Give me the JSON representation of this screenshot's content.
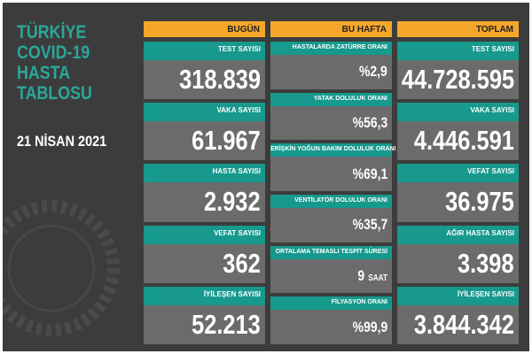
{
  "header": {
    "title": [
      "TÜRKİYE",
      "COVID-19",
      "HASTA",
      "TABLOSU"
    ],
    "date": "21 NİSAN 2021"
  },
  "columns": [
    {
      "heading": "BUGÜN",
      "cells": [
        {
          "label": "TEST SAYISI",
          "value": "318.839"
        },
        {
          "label": "VAKA SAYISI",
          "value": "61.967"
        },
        {
          "label": "HASTA SAYISI",
          "value": "2.932"
        },
        {
          "label": "VEFAT SAYISI",
          "value": "362"
        },
        {
          "label": "İYİLEŞEN SAYISI",
          "value": "52.213"
        }
      ]
    },
    {
      "heading": "BU HAFTA",
      "cells": [
        {
          "label": "HASTALARDA ZATÜRRE ORANI",
          "value": "%2,9"
        },
        {
          "label": "YATAK DOLULUK ORANI",
          "value": "%56,3"
        },
        {
          "label": "ERİŞKİN YOĞUN BAKIM DOLULUK ORANI",
          "value": "%69,1"
        },
        {
          "label": "VENTİLATÖR DOLULUK ORANI",
          "value": "%35,7"
        },
        {
          "label": "ORTALAMA TEMASLI TESPİT SÜRESİ",
          "value": "9",
          "unit": "SAAT"
        },
        {
          "label": "FİLYASYON ORANI",
          "value": "%99,9"
        }
      ]
    },
    {
      "heading": "TOPLAM",
      "cells": [
        {
          "label": "TEST SAYISI",
          "value": "44.728.595"
        },
        {
          "label": "VAKA SAYISI",
          "value": "4.446.591"
        },
        {
          "label": "VEFAT SAYISI",
          "value": "36.975"
        },
        {
          "label": "AĞIR HASTA SAYISI",
          "value": "3.398"
        },
        {
          "label": "İYİLEŞEN SAYISI",
          "value": "3.844.342"
        }
      ]
    }
  ]
}
